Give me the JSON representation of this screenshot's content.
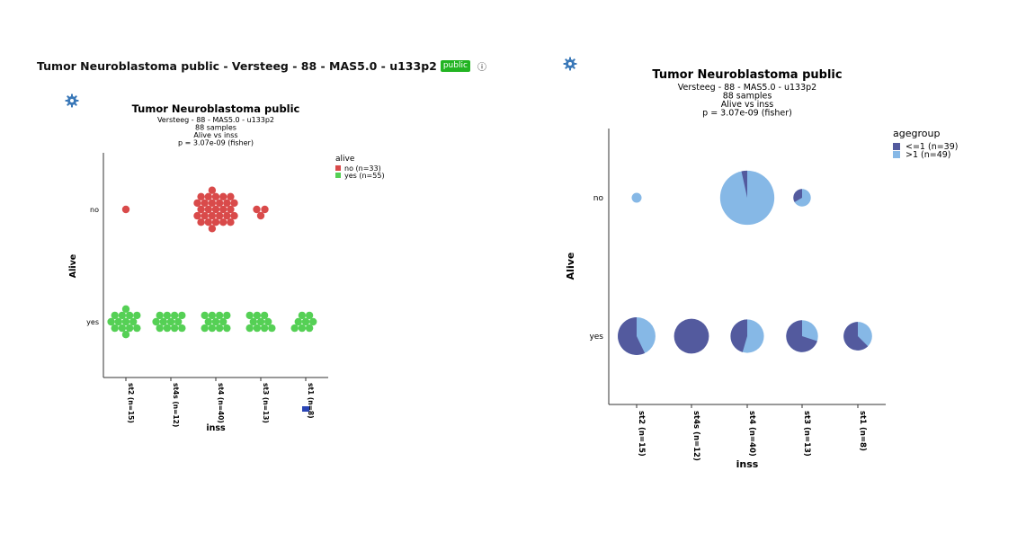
{
  "page": {
    "title": "Tumor Neuroblastoma public - Versteeg - 88 - MAS5.0 - u133p2",
    "badge": "public",
    "info_icon": "info-icon",
    "settings_icon": "gear-icon"
  },
  "chart_data": [
    {
      "type": "scatter",
      "title": "Tumor Neuroblastoma public",
      "subtitle_lines": [
        "Versteeg - 88 - MAS5.0 - u133p2",
        "88 samples",
        "Alive vs inss",
        "p = 3.07e-09 (fisher)"
      ],
      "xlabel": "inss",
      "ylabel": "Alive",
      "categories": [
        "st2 (n=15)",
        "st4s (n=12)",
        "st4 (n=40)",
        "st3 (n=13)",
        "st1 (n=8)"
      ],
      "y_categories": [
        "no",
        "yes"
      ],
      "legend": {
        "title": "alive",
        "position": "top-right",
        "entries": [
          {
            "label": "no (n=33)",
            "color": "#d94a4a"
          },
          {
            "label": "yes (n=55)",
            "color": "#55d055"
          }
        ]
      },
      "counts": {
        "no": [
          1,
          0,
          29,
          3,
          0
        ],
        "yes": [
          14,
          12,
          11,
          10,
          8
        ]
      }
    },
    {
      "type": "pie",
      "title": "Tumor Neuroblastoma public",
      "subtitle_lines": [
        "Versteeg - 88 - MAS5.0 - u133p2",
        "88 samples",
        "Alive vs inss",
        "p = 3.07e-09 (fisher)"
      ],
      "xlabel": "inss",
      "ylabel": "Alive",
      "categories": [
        "st2 (n=15)",
        "st4s (n=12)",
        "st4 (n=40)",
        "st3 (n=13)",
        "st1 (n=8)"
      ],
      "y_categories": [
        "no",
        "yes"
      ],
      "legend": {
        "title": "agegroup",
        "position": "top-right",
        "entries": [
          {
            "label": "<=1 (n=39)",
            "color": "#535a9e"
          },
          {
            "label": ">1 (n=49)",
            "color": "#86b8e6"
          }
        ]
      },
      "pies": {
        "no": [
          {
            "le1": 0,
            "gt1": 1
          },
          null,
          {
            "le1": 1,
            "gt1": 28
          },
          {
            "le1": 1,
            "gt1": 2
          },
          null
        ],
        "yes": [
          {
            "le1": 8,
            "gt1": 6
          },
          {
            "le1": 12,
            "gt1": 0
          },
          {
            "le1": 5,
            "gt1": 6
          },
          {
            "le1": 7,
            "gt1": 3
          },
          {
            "le1": 5,
            "gt1": 3
          }
        ]
      }
    }
  ]
}
